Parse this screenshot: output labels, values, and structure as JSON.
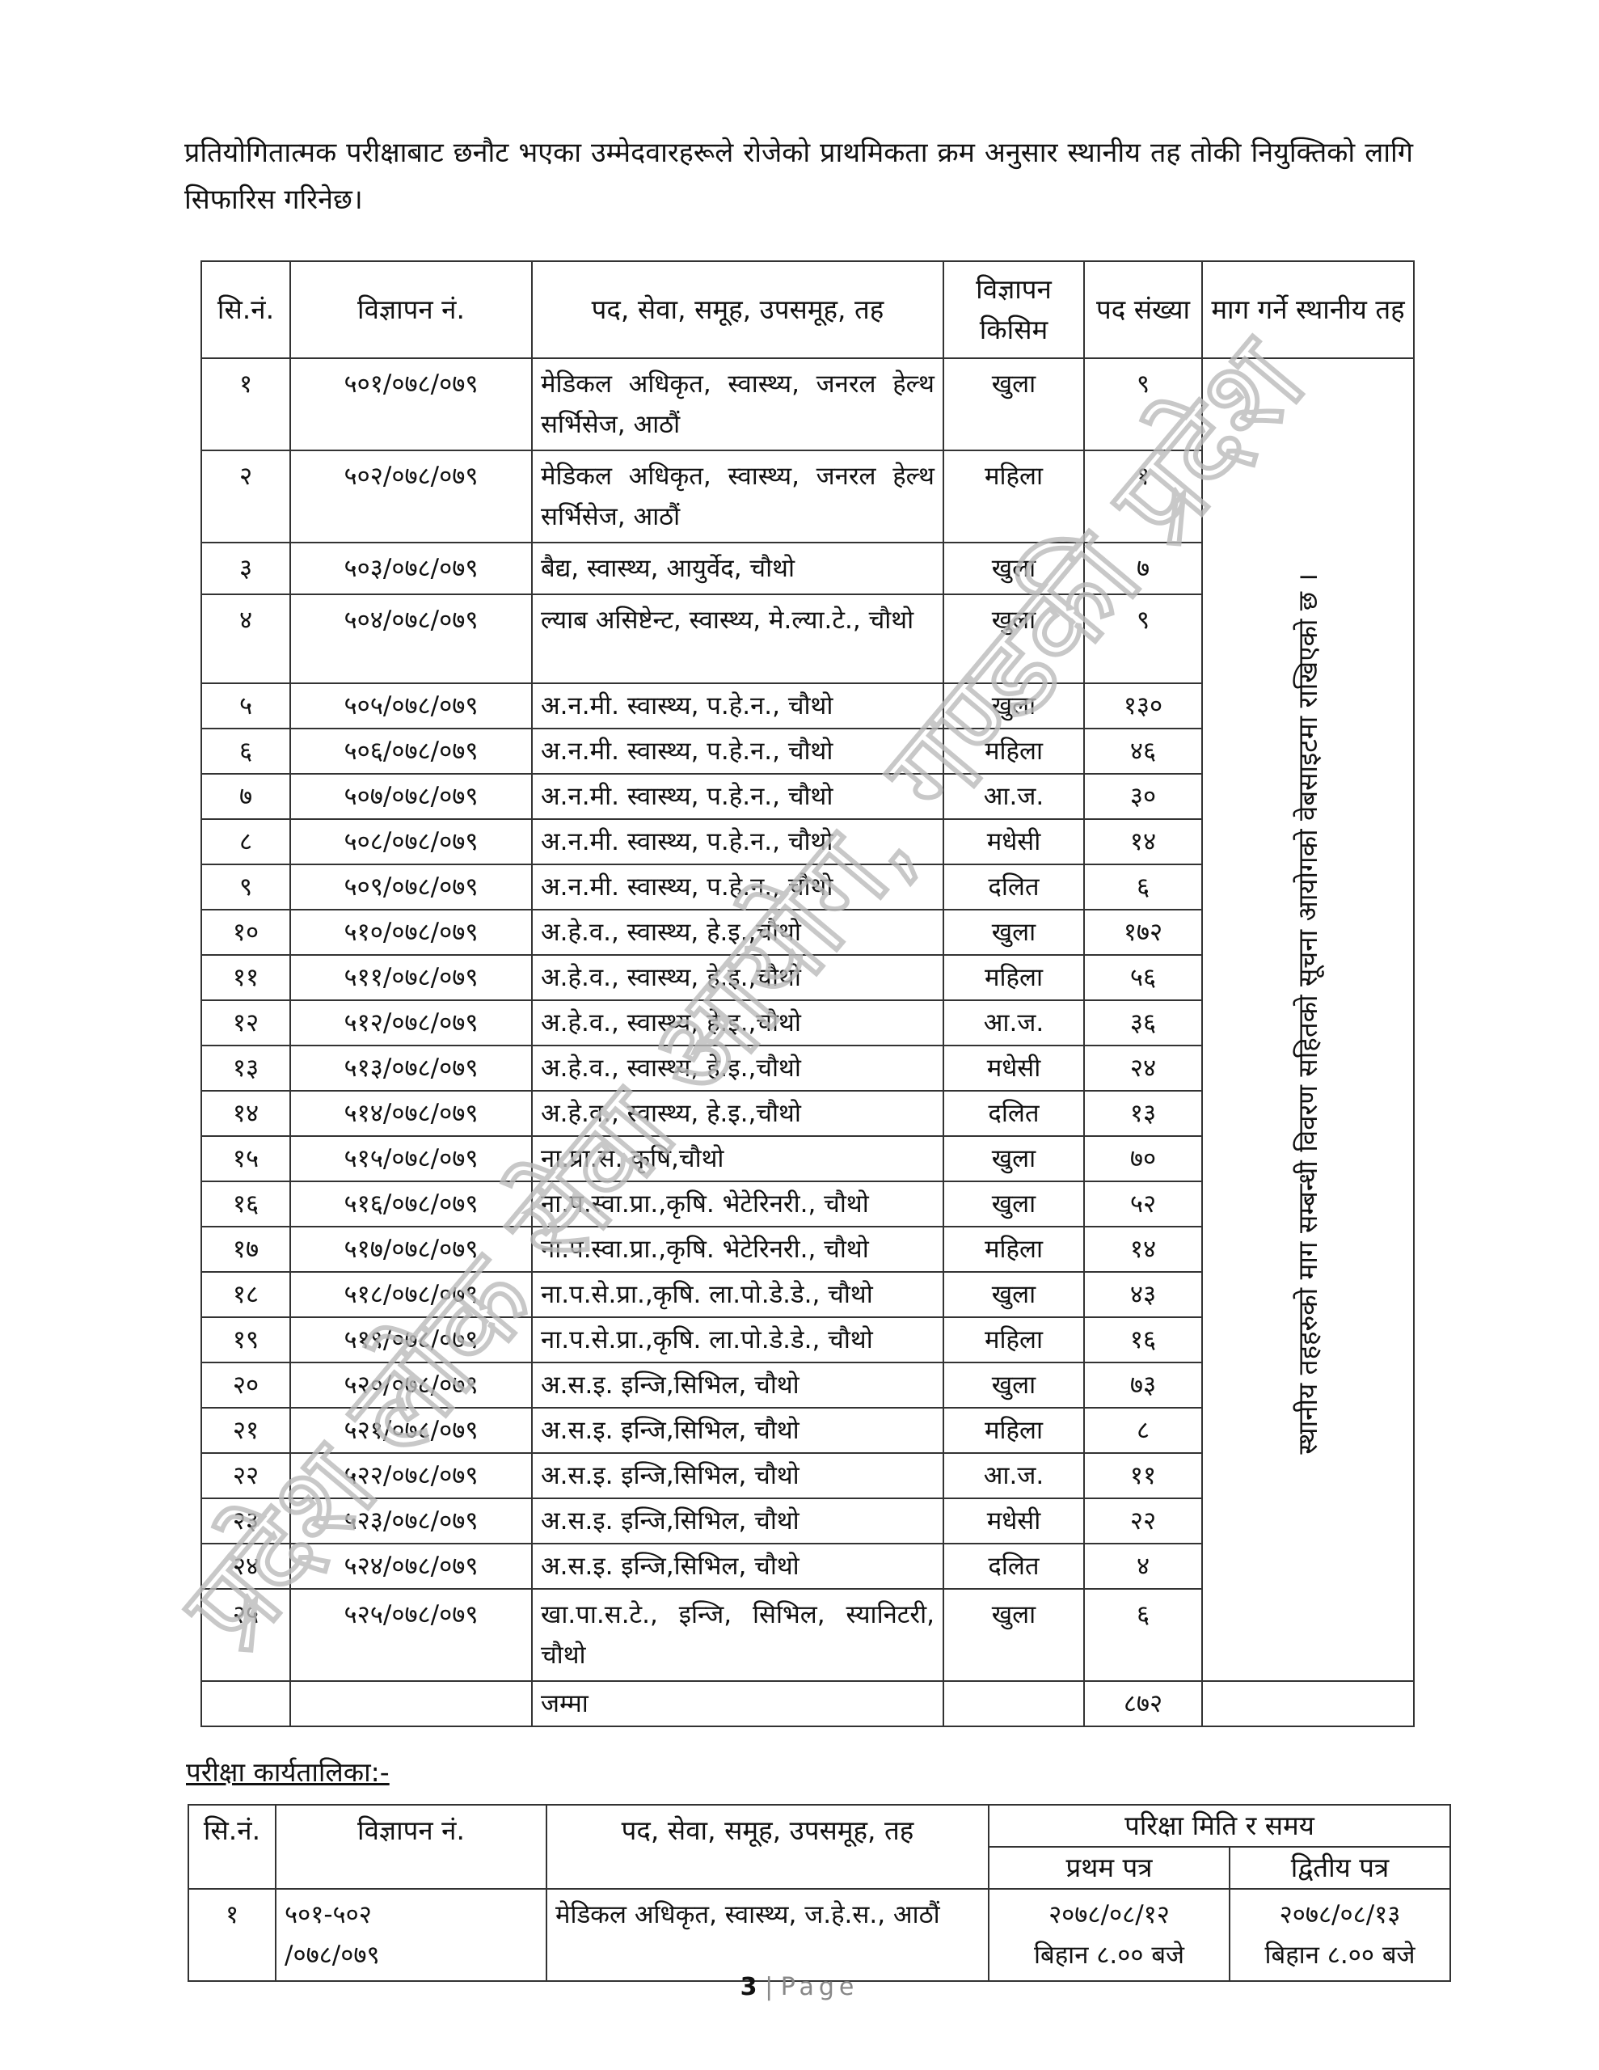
{
  "intro": "प्रतियोगितात्मक परीक्षाबाट छनौट भएका उम्मेदवारहरूले रोजेको प्राथमिकता क्रम अनुसार स्थानीय तह तोकी नियुक्तिको लागि सिफारिस गरिनेछ।",
  "main_table": {
    "headers": [
      "सि.नं.",
      "विज्ञापन नं.",
      "पद, सेवा, समूह, उपसमूह, तह",
      "विज्ञापन किसिम",
      "पद संख्या",
      "माग गर्ने स्थानीय तह"
    ],
    "rows": [
      [
        "१",
        "५०१/०७८/०७९",
        "मेडिकल अधिकृत, स्वास्थ्य, जनरल हेल्थ सर्भिसेज, आठौं",
        "खुला",
        "९"
      ],
      [
        "२",
        "५०२/०७८/०७९",
        "मेडिकल अधिकृत, स्वास्थ्य, जनरल हेल्थ सर्भिसेज, आठौं",
        "महिला",
        "१"
      ],
      [
        "३",
        "५०३/०७८/०७९",
        "बैद्य, स्वास्थ्य, आयुर्वेद, चौथो",
        "खुला",
        "७"
      ],
      [
        "४",
        "५०४/०७८/०७९",
        "ल्याब असिष्टेन्ट, स्वास्थ्य, मे.ल्या.टे., चौथो",
        "खुला",
        "९"
      ],
      [
        "५",
        "५०५/०७८/०७९",
        "अ.न.मी. स्वास्थ्य, प.हे.न., चौथो",
        "खुला",
        "१३०"
      ],
      [
        "६",
        "५०६/०७८/०७९",
        "अ.न.मी. स्वास्थ्य, प.हे.न., चौथो",
        "महिला",
        "४६"
      ],
      [
        "७",
        "५०७/०७८/०७९",
        "अ.न.मी. स्वास्थ्य, प.हे.न., चौथो",
        "आ.ज.",
        "३०"
      ],
      [
        "८",
        "५०८/०७८/०७९",
        "अ.न.मी. स्वास्थ्य, प.हे.न., चौथो",
        "मधेसी",
        "१४"
      ],
      [
        "९",
        "५०९/०७८/०७९",
        "अ.न.मी. स्वास्थ्य, प.हे.न., चौथो",
        "दलित",
        "६"
      ],
      [
        "१०",
        "५१०/०७८/०७९",
        "अ.हे.व., स्वास्थ्य, हे.इ.,चौथो",
        "खुला",
        "१७२"
      ],
      [
        "११",
        "५११/०७८/०७९",
        "अ.हे.व., स्वास्थ्य, हे.इ.,चौथो",
        "महिला",
        "५६"
      ],
      [
        "१२",
        "५१२/०७८/०७९",
        "अ.हे.व., स्वास्थ्य, हे.इ.,चौथो",
        "आ.ज.",
        "३६"
      ],
      [
        "१३",
        "५१३/०७८/०७९",
        "अ.हे.व., स्वास्थ्य, हे.इ.,चौथो",
        "मधेसी",
        "२४"
      ],
      [
        "१४",
        "५१४/०७८/०७९",
        "अ.हे.व., स्वास्थ्य, हे.इ.,चौथो",
        "दलित",
        "१३"
      ],
      [
        "१५",
        "५१५/०७८/०७९",
        "ना.प्रा.स. कृषि,चौथो",
        "खुला",
        "७०"
      ],
      [
        "१६",
        "५१६/०७८/०७९",
        "ना.प.स्वा.प्रा.,कृषि. भेटेरिनरी., चौथो",
        "खुला",
        "५२"
      ],
      [
        "१७",
        "५१७/०७८/०७९",
        "ना.प.स्वा.प्रा.,कृषि. भेटेरिनरी., चौथो",
        "महिला",
        "१४"
      ],
      [
        "१८",
        "५१८/०७८/०७९",
        "ना.प.से.प्रा.,कृषि. ला.पो.डे.डे., चौथो",
        "खुला",
        "४३"
      ],
      [
        "१९",
        "५१९/०७८/०७९",
        "ना.प.से.प्रा.,कृषि. ला.पो.डे.डे., चौथो",
        "महिला",
        "१६"
      ],
      [
        "२०",
        "५२०/०७८/०७९",
        "अ.स.इ. इन्जि,सिभिल, चौथो",
        "खुला",
        "७३"
      ],
      [
        "२१",
        "५२१/०७८/०७९",
        "अ.स.इ. इन्जि,सिभिल, चौथो",
        "महिला",
        "८"
      ],
      [
        "२२",
        "५२२/०७८/०७९",
        "अ.स.इ. इन्जि,सिभिल, चौथो",
        "आ.ज.",
        "११"
      ],
      [
        "२३",
        "५२३/०७८/०७९",
        "अ.स.इ. इन्जि,सिभिल, चौथो",
        "मधेसी",
        "२२"
      ],
      [
        "२४",
        "५२४/०७८/०७९",
        "अ.स.इ. इन्जि,सिभिल, चौथो",
        "दलित",
        "४"
      ],
      [
        "२५",
        "५२५/०७८/०७९",
        "खा.पा.स.टे., इन्जि, सिभिल, स्यानिटरी, चौथो",
        "खुला",
        "६"
      ]
    ],
    "local_level_note": "स्थानीय तहहरुको माग सम्बन्धी विवरण सहितको सूचना आयोगको वेबसाइटमा राखिएको छ ।",
    "total_label": "जम्मा",
    "total_value": "८७२"
  },
  "schedule": {
    "heading": "परीक्षा कार्यतालिका:-",
    "headers": [
      "सि.नं.",
      "विज्ञापन नं.",
      "पद, सेवा, समूह, उपसमूह, तह",
      "परिक्षा मिति र समय"
    ],
    "subheaders": [
      "प्रथम पत्र",
      "द्वितीय पत्र"
    ],
    "rows": [
      {
        "sn": "१",
        "adv_line1": "५०१-५०२",
        "adv_line2": "/०७८/०७९",
        "post": "मेडिकल अधिकृत, स्वास्थ्य, ज.हे.स., आठौं",
        "paper1_date": "२०७८/०८/१२",
        "paper1_time": "बिहान ८.०० बजे",
        "paper2_date": "२०७८/०८/१३",
        "paper2_time": "बिहान ८.०० बजे"
      }
    ]
  },
  "footer": {
    "page_number": "3",
    "page_label": "Page"
  },
  "watermark": "प्रदेश लोक सेवा आयोग, गण्डकी प्रदेश"
}
